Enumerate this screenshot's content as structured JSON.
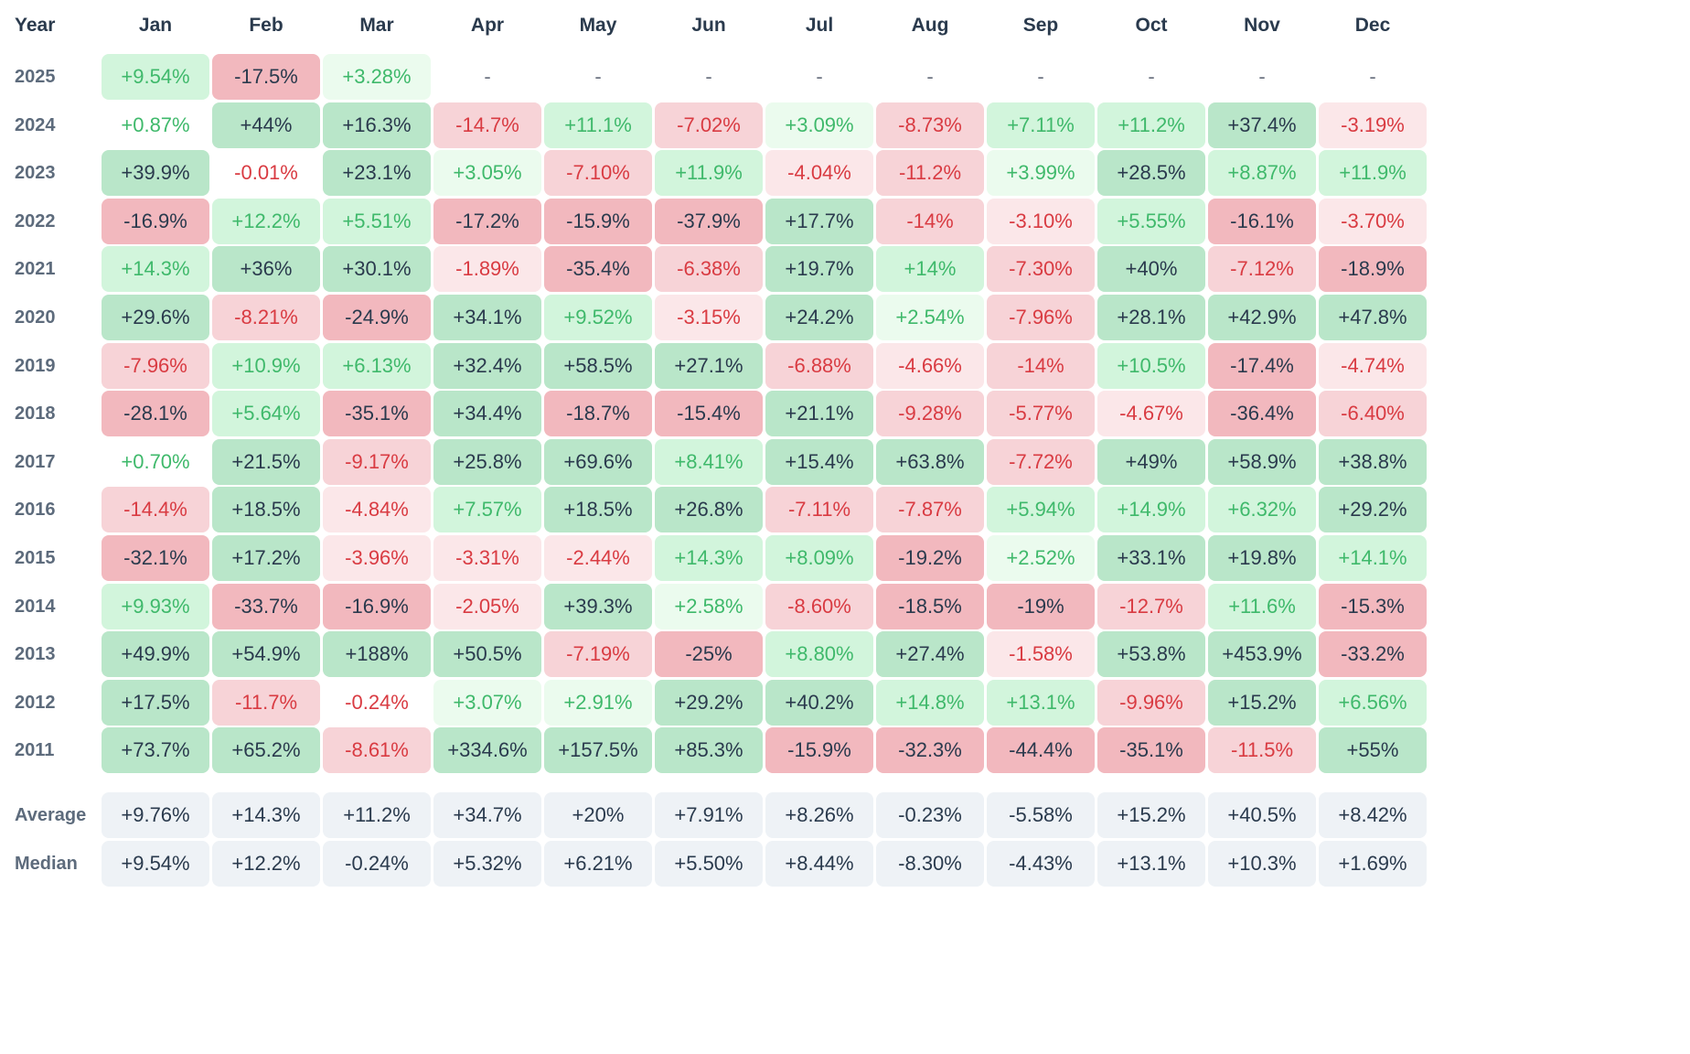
{
  "header": {
    "year_label": "Year",
    "months": [
      "Jan",
      "Feb",
      "Mar",
      "Apr",
      "May",
      "Jun",
      "Jul",
      "Aug",
      "Sep",
      "Oct",
      "Nov",
      "Dec"
    ]
  },
  "rows": [
    {
      "year": "2025",
      "values": [
        "+9.54%",
        "-17.5%",
        "+3.28%",
        "-",
        "-",
        "-",
        "-",
        "-",
        "-",
        "-",
        "-",
        "-"
      ]
    },
    {
      "year": "2024",
      "values": [
        "+0.87%",
        "+44%",
        "+16.3%",
        "-14.7%",
        "+11.1%",
        "-7.02%",
        "+3.09%",
        "-8.73%",
        "+7.11%",
        "+11.2%",
        "+37.4%",
        "-3.19%"
      ]
    },
    {
      "year": "2023",
      "values": [
        "+39.9%",
        "-0.01%",
        "+23.1%",
        "+3.05%",
        "-7.10%",
        "+11.9%",
        "-4.04%",
        "-11.2%",
        "+3.99%",
        "+28.5%",
        "+8.87%",
        "+11.9%"
      ]
    },
    {
      "year": "2022",
      "values": [
        "-16.9%",
        "+12.2%",
        "+5.51%",
        "-17.2%",
        "-15.9%",
        "-37.9%",
        "+17.7%",
        "-14%",
        "-3.10%",
        "+5.55%",
        "-16.1%",
        "-3.70%"
      ]
    },
    {
      "year": "2021",
      "values": [
        "+14.3%",
        "+36%",
        "+30.1%",
        "-1.89%",
        "-35.4%",
        "-6.38%",
        "+19.7%",
        "+14%",
        "-7.30%",
        "+40%",
        "-7.12%",
        "-18.9%"
      ]
    },
    {
      "year": "2020",
      "values": [
        "+29.6%",
        "-8.21%",
        "-24.9%",
        "+34.1%",
        "+9.52%",
        "-3.15%",
        "+24.2%",
        "+2.54%",
        "-7.96%",
        "+28.1%",
        "+42.9%",
        "+47.8%"
      ]
    },
    {
      "year": "2019",
      "values": [
        "-7.96%",
        "+10.9%",
        "+6.13%",
        "+32.4%",
        "+58.5%",
        "+27.1%",
        "-6.88%",
        "-4.66%",
        "-14%",
        "+10.5%",
        "-17.4%",
        "-4.74%"
      ]
    },
    {
      "year": "2018",
      "values": [
        "-28.1%",
        "+5.64%",
        "-35.1%",
        "+34.4%",
        "-18.7%",
        "-15.4%",
        "+21.1%",
        "-9.28%",
        "-5.77%",
        "-4.67%",
        "-36.4%",
        "-6.40%"
      ]
    },
    {
      "year": "2017",
      "values": [
        "+0.70%",
        "+21.5%",
        "-9.17%",
        "+25.8%",
        "+69.6%",
        "+8.41%",
        "+15.4%",
        "+63.8%",
        "-7.72%",
        "+49%",
        "+58.9%",
        "+38.8%"
      ]
    },
    {
      "year": "2016",
      "values": [
        "-14.4%",
        "+18.5%",
        "-4.84%",
        "+7.57%",
        "+18.5%",
        "+26.8%",
        "-7.11%",
        "-7.87%",
        "+5.94%",
        "+14.9%",
        "+6.32%",
        "+29.2%"
      ]
    },
    {
      "year": "2015",
      "values": [
        "-32.1%",
        "+17.2%",
        "-3.96%",
        "-3.31%",
        "-2.44%",
        "+14.3%",
        "+8.09%",
        "-19.2%",
        "+2.52%",
        "+33.1%",
        "+19.8%",
        "+14.1%"
      ]
    },
    {
      "year": "2014",
      "values": [
        "+9.93%",
        "-33.7%",
        "-16.9%",
        "-2.05%",
        "+39.3%",
        "+2.58%",
        "-8.60%",
        "-18.5%",
        "-19%",
        "-12.7%",
        "+11.6%",
        "-15.3%"
      ]
    },
    {
      "year": "2013",
      "values": [
        "+49.9%",
        "+54.9%",
        "+188%",
        "+50.5%",
        "-7.19%",
        "-25%",
        "+8.80%",
        "+27.4%",
        "-1.58%",
        "+53.8%",
        "+453.9%",
        "-33.2%"
      ]
    },
    {
      "year": "2012",
      "values": [
        "+17.5%",
        "-11.7%",
        "-0.24%",
        "+3.07%",
        "+2.91%",
        "+29.2%",
        "+40.2%",
        "+14.8%",
        "+13.1%",
        "-9.96%",
        "+15.2%",
        "+6.56%"
      ]
    },
    {
      "year": "2011",
      "values": [
        "+73.7%",
        "+65.2%",
        "-8.61%",
        "+334.6%",
        "+157.5%",
        "+85.3%",
        "-15.9%",
        "-32.3%",
        "-44.4%",
        "-35.1%",
        "-11.5%",
        "+55%"
      ]
    }
  ],
  "summary": [
    {
      "label": "Average",
      "values": [
        "+9.76%",
        "+14.3%",
        "+11.2%",
        "+34.7%",
        "+20%",
        "+7.91%",
        "+8.26%",
        "-0.23%",
        "-5.58%",
        "+15.2%",
        "+40.5%",
        "+8.42%"
      ]
    },
    {
      "label": "Median",
      "values": [
        "+9.54%",
        "+12.2%",
        "-0.24%",
        "+5.32%",
        "+6.21%",
        "+5.50%",
        "+8.44%",
        "-8.30%",
        "-4.43%",
        "+13.1%",
        "+10.3%",
        "+1.69%"
      ]
    }
  ],
  "colors": {
    "pos_strong": "#b9e6c9",
    "pos_mid": "#d2f5dc",
    "pos_light": "#ebfbee",
    "neg_strong": "#f2b8be",
    "neg_mid": "#f7d3d7",
    "neg_light": "#fbe7e9",
    "pos_text_dark": "#2a3a4d",
    "pos_text": "#3fb96b",
    "neg_text": "#d93b42",
    "summary_bg": "#eef2f6"
  }
}
